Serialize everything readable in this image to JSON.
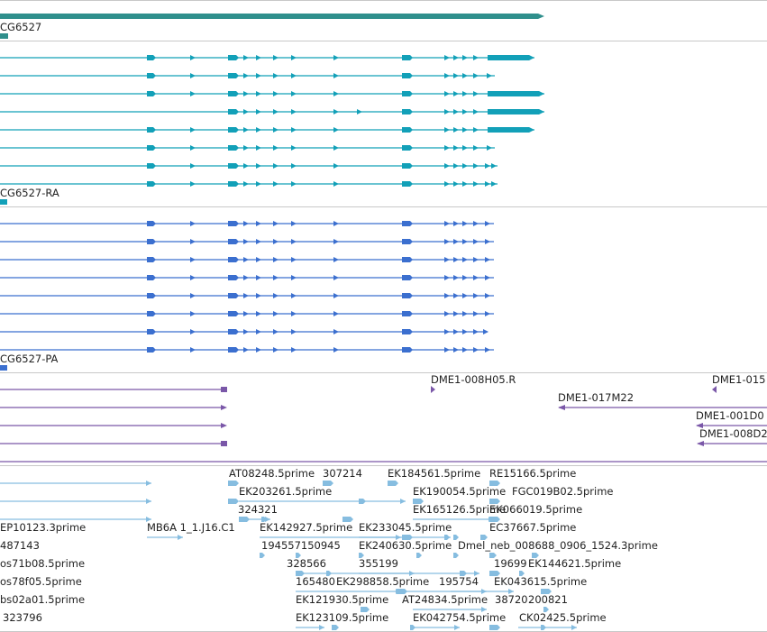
{
  "colors": {
    "gene": "#2f8f8c",
    "mrna": "#12a0b8",
    "protein": "#3b6fcf",
    "clone": "#7a57a8",
    "est": "#86bde0",
    "separator": "#c8c8c8",
    "label": "#222222"
  },
  "tracks": {
    "gene": {
      "label": "CG6527"
    },
    "mrna": {
      "label": "CG6527-RA",
      "transcript_count": 8
    },
    "protein": {
      "label": "CG6527-PA",
      "transcript_count": 8
    },
    "clones": {
      "labels": [
        "DME1-008H05.R",
        "DME1-015",
        "DME1-017M22",
        "DME1-001D0",
        "DME1-008D2"
      ]
    },
    "ests": {
      "labels": [
        "AT08248.5prime",
        "307214",
        "EK184561.5prime",
        "RE15166.5prime",
        "EK203261.5prime",
        "EK190054.5prime",
        "FGC019B02.5prime",
        "324321",
        "EK165126.5prime",
        "EK066019.5prime",
        "EP10123.3prime",
        "MB6A 1_1.J16.C1",
        "EK142927.5prime",
        "EK233045.5prime",
        "EC37667.5prime",
        "487143",
        "194557150945",
        "EK240630.5prime",
        "Dmel_neb_008688_0906_1524.3prime",
        "os71b08.5prime",
        "328566",
        "355199",
        "19699",
        "EK144621.5prime",
        "os78f05.5prime",
        "165480",
        "EK298858.5prime",
        "195754",
        "EK043615.5prime",
        "bs02a01.5prime",
        "EK121930.5prime",
        "AT24834.5prime",
        "38720",
        "200821",
        "323796",
        "EK123109.5prime",
        "EK042754.5prime",
        "CK02425.5prime"
      ]
    }
  }
}
